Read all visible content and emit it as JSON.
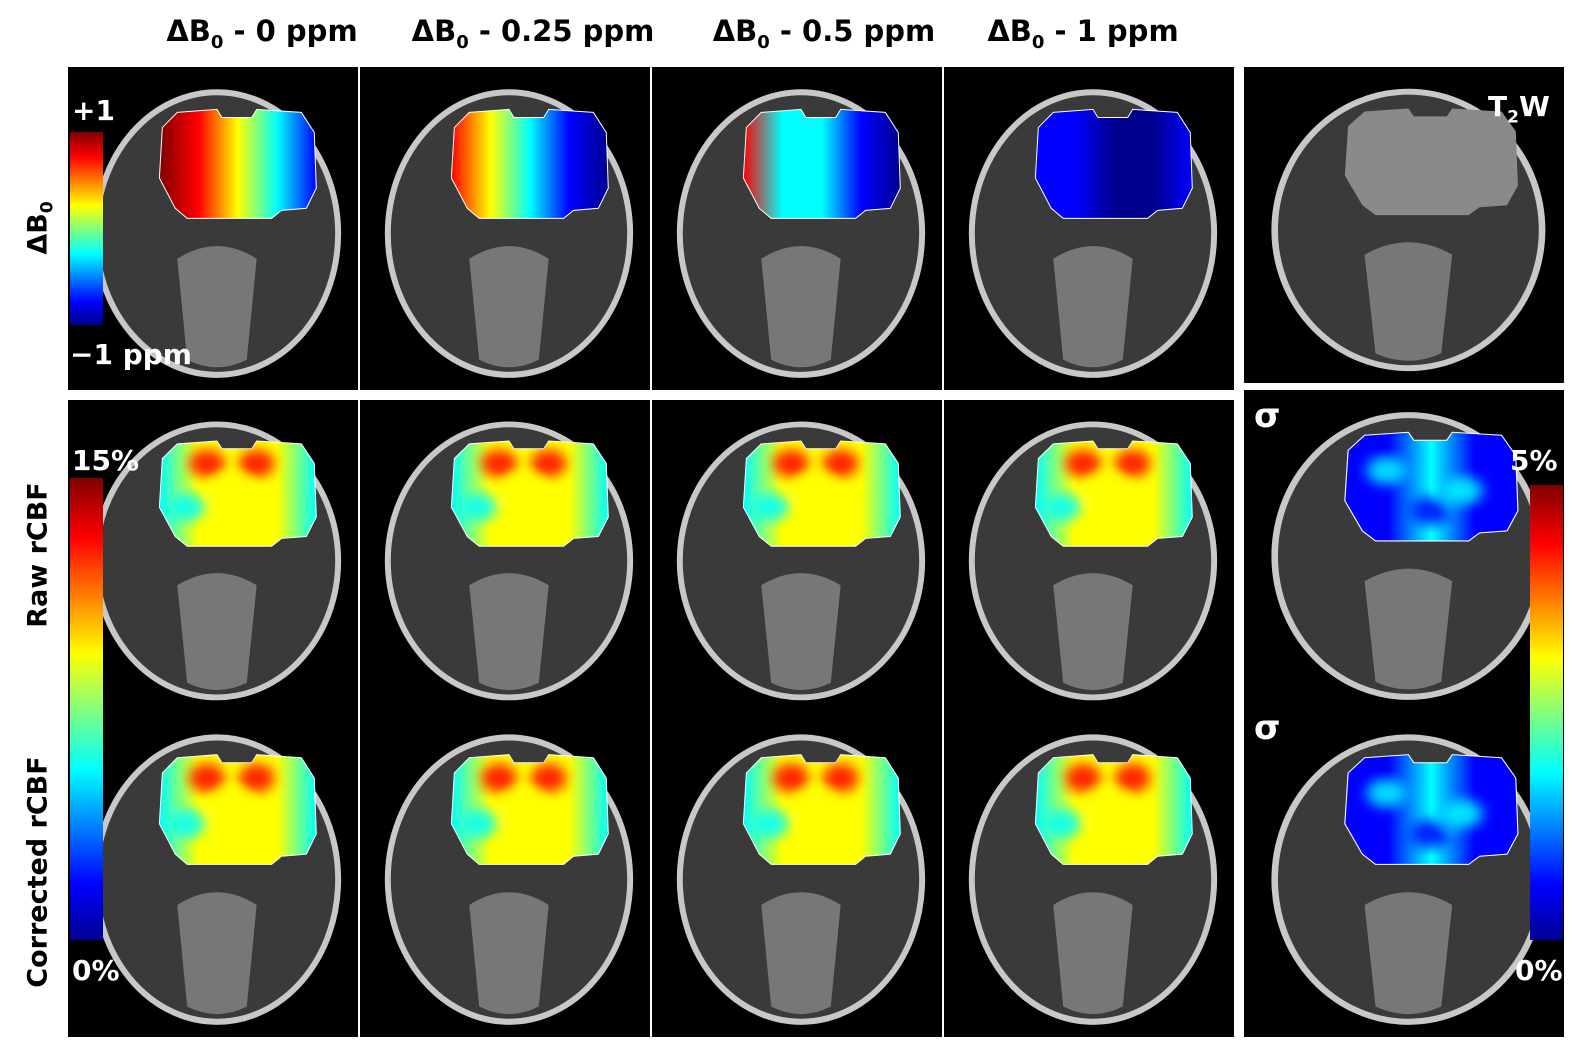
{
  "columns": [
    {
      "prefix": "ΔB",
      "sub": "0",
      "suffix": " - 0 ppm"
    },
    {
      "prefix": "ΔB",
      "sub": "0",
      "suffix": " - 0.25 ppm"
    },
    {
      "prefix": "ΔB",
      "sub": "0",
      "suffix": " - 0.5 ppm"
    },
    {
      "prefix": "ΔB",
      "sub": "0",
      "suffix": " - 1 ppm"
    }
  ],
  "rows": [
    {
      "prefix": "ΔB",
      "sub": "0",
      "suffix": ""
    },
    {
      "prefix": "Raw rCBF",
      "sub": "",
      "suffix": ""
    },
    {
      "prefix": "Corrected rCBF",
      "sub": "",
      "suffix": ""
    }
  ],
  "colorbars": {
    "db0": {
      "max": "+1",
      "min": "−1 ppm"
    },
    "rcbf": {
      "max": "15%",
      "min": "0%"
    },
    "sigma": {
      "max": "5%",
      "min": "0%"
    }
  },
  "right_column": {
    "t2w": {
      "prefix": "T",
      "sub": "2",
      "suffix": "W"
    },
    "sigma_raw": "σ",
    "sigma_corrected": "σ"
  },
  "colormap": [
    "#00008f",
    "#0000ff",
    "#00ffff",
    "#ffff00",
    "#ff0000",
    "#800000"
  ]
}
